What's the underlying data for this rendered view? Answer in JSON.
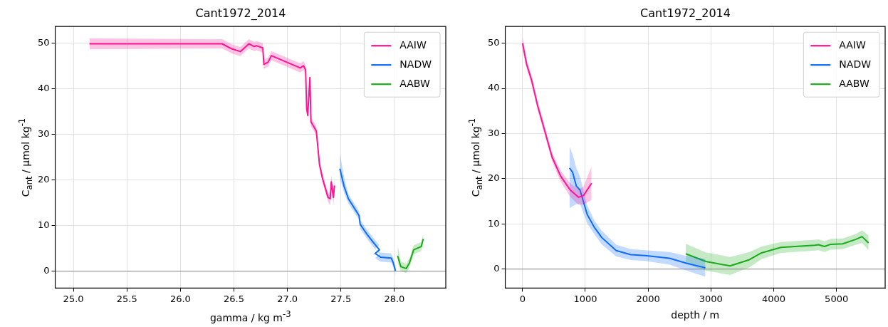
{
  "chart_data": [
    {
      "type": "line",
      "title": "Cant1972_2014",
      "xlabel": "gamma / kg m$^{-3}$",
      "ylabel": "C$_{ant}$ / µmol kg$^{-1}$",
      "xlim": [
        24.83,
        28.48
      ],
      "ylim": [
        -3.7,
        53.7
      ],
      "xticks": [
        {
          "value": 25,
          "label": "25.0"
        },
        25.5,
        {
          "value": 26,
          "label": "26.0"
        },
        26.5,
        {
          "value": 27,
          "label": "27.0"
        },
        27.5,
        {
          "value": 28,
          "label": "28.0"
        }
      ],
      "yticks": [
        0,
        10,
        20,
        30,
        40,
        50
      ],
      "grid": true,
      "legend": "top right",
      "ref_lines": [
        {
          "axis": "y",
          "value": 0,
          "color": "#888888"
        }
      ],
      "series": [
        {
          "name": "AAIW",
          "color": "#ff1493",
          "x": [
            25.15,
            26.39,
            26.48,
            26.56,
            26.64,
            26.69,
            26.71,
            26.77,
            26.78,
            26.82,
            26.85,
            27.12,
            27.15,
            27.17,
            27.18,
            27.19,
            27.21,
            27.22,
            27.27,
            27.3,
            27.33,
            27.38,
            27.4,
            27.41,
            27.43,
            27.44
          ],
          "values": [
            49.9,
            49.9,
            48.8,
            48.2,
            49.9,
            49.3,
            49.5,
            49.0,
            45.4,
            45.9,
            47.3,
            44.6,
            45.1,
            44.2,
            35.7,
            34.2,
            42.5,
            32.8,
            30.8,
            23.4,
            20.2,
            16.2,
            15.9,
            19.6,
            16.2,
            18.8
          ],
          "lower": [
            48.7,
            48.9,
            47.8,
            47.2,
            48.9,
            48.3,
            48.5,
            48.0,
            44.4,
            44.9,
            46.3,
            43.6,
            44.1,
            43.2,
            34.7,
            33.2,
            41.5,
            31.8,
            29.8,
            22.4,
            19.2,
            15.2,
            14.4,
            18.1,
            14.7,
            17.3
          ],
          "upper": [
            51.1,
            50.9,
            49.8,
            49.2,
            50.9,
            50.3,
            50.5,
            50.0,
            46.4,
            46.9,
            48.3,
            45.6,
            46.1,
            45.2,
            36.7,
            35.2,
            43.5,
            33.8,
            31.8,
            24.4,
            21.2,
            17.2,
            17.4,
            21.1,
            17.7,
            20.3
          ]
        },
        {
          "name": "NADW",
          "color": "#0b6cff",
          "x": [
            27.49,
            27.53,
            27.57,
            27.67,
            27.68,
            27.75,
            27.81,
            27.86,
            27.82,
            27.87,
            27.97,
            27.99,
            28.01
          ],
          "values": [
            22.5,
            18.6,
            15.9,
            12.2,
            10.3,
            7.9,
            6.1,
            4.7,
            3.9,
            3.1,
            2.9,
            1.8,
            0.1
          ],
          "lower": [
            20.5,
            17.2,
            14.9,
            11.2,
            9.3,
            6.9,
            5.1,
            3.7,
            2.9,
            2.1,
            1.9,
            0.8,
            -0.9
          ],
          "upper": [
            26.0,
            20.6,
            16.9,
            13.2,
            11.3,
            8.9,
            7.1,
            5.7,
            4.9,
            4.1,
            3.9,
            2.8,
            1.1
          ]
        },
        {
          "name": "AABW",
          "color": "#1aaa1a",
          "x": [
            28.03,
            28.06,
            28.11,
            28.14,
            28.18,
            28.25,
            28.27
          ],
          "values": [
            3.4,
            1.0,
            0.6,
            1.8,
            4.7,
            5.4,
            7.1
          ],
          "lower": [
            2.0,
            0.0,
            -0.4,
            0.8,
            3.7,
            4.4,
            6.1
          ],
          "upper": [
            5.8,
            2.2,
            1.6,
            2.8,
            5.7,
            6.4,
            8.1
          ]
        }
      ]
    },
    {
      "type": "line",
      "title": "Cant1972_2014",
      "xlabel": "depth / m",
      "ylabel": "C$_{ant}$ / µmol kg$^{-1}$",
      "xlim": [
        -275,
        5775
      ],
      "ylim": [
        -4.2,
        53.7
      ],
      "xticks": [
        0,
        1000,
        2000,
        3000,
        4000,
        5000
      ],
      "yticks": [
        0,
        10,
        20,
        30,
        40,
        50
      ],
      "grid": true,
      "legend": "top right",
      "ref_lines": [
        {
          "axis": "y",
          "value": 0,
          "color": "#888888"
        }
      ],
      "series": [
        {
          "name": "AAIW",
          "color": "#ff1493",
          "x": [
            0,
            66,
            143,
            240,
            354,
            471,
            606,
            760,
            894,
            972,
            1099
          ],
          "values": [
            50.0,
            45.3,
            41.9,
            36.2,
            30.6,
            24.8,
            20.6,
            17.5,
            15.9,
            16.3,
            19.0
          ],
          "lower": [
            48.5,
            44.3,
            40.9,
            35.2,
            29.6,
            23.8,
            19.4,
            16.0,
            14.2,
            14.3,
            15.3
          ],
          "upper": [
            51.5,
            46.3,
            42.9,
            37.2,
            31.6,
            25.8,
            21.8,
            19.0,
            17.6,
            18.3,
            22.7
          ]
        },
        {
          "name": "NADW",
          "color": "#0b6cff",
          "x": [
            748,
            798,
            856,
            915,
            1030,
            1146,
            1261,
            1492,
            1725,
            1956,
            2341,
            2611,
            2912
          ],
          "values": [
            22.4,
            21.4,
            18.4,
            17.5,
            12.1,
            9.2,
            7.0,
            4.1,
            3.2,
            3.0,
            2.4,
            1.3,
            0.3
          ],
          "lower": [
            13.5,
            13.9,
            14.4,
            14.5,
            10.1,
            7.7,
            5.5,
            2.8,
            2.0,
            1.8,
            1.0,
            -0.3,
            -1.7
          ],
          "upper": [
            27.1,
            25.4,
            22.4,
            20.5,
            14.1,
            10.7,
            8.5,
            5.4,
            4.4,
            4.2,
            3.8,
            2.9,
            2.3
          ]
        },
        {
          "name": "AABW",
          "color": "#1aaa1a",
          "x": [
            2600,
            2920,
            3306,
            3614,
            3806,
            4115,
            4655,
            4713,
            4810,
            4906,
            5099,
            5311,
            5407,
            5511
          ],
          "values": [
            3.4,
            1.7,
            0.7,
            2.1,
            3.6,
            4.8,
            5.3,
            5.4,
            5.0,
            5.5,
            5.6,
            6.6,
            7.2,
            5.8
          ],
          "lower": [
            1.2,
            -0.3,
            -1.3,
            0.4,
            2.2,
            3.6,
            4.1,
            4.2,
            3.8,
            4.3,
            4.4,
            5.4,
            5.8,
            4.2
          ],
          "upper": [
            5.6,
            3.7,
            2.7,
            3.8,
            5.0,
            6.0,
            6.5,
            6.6,
            6.2,
            6.7,
            6.8,
            7.8,
            8.6,
            7.4
          ]
        }
      ]
    }
  ]
}
